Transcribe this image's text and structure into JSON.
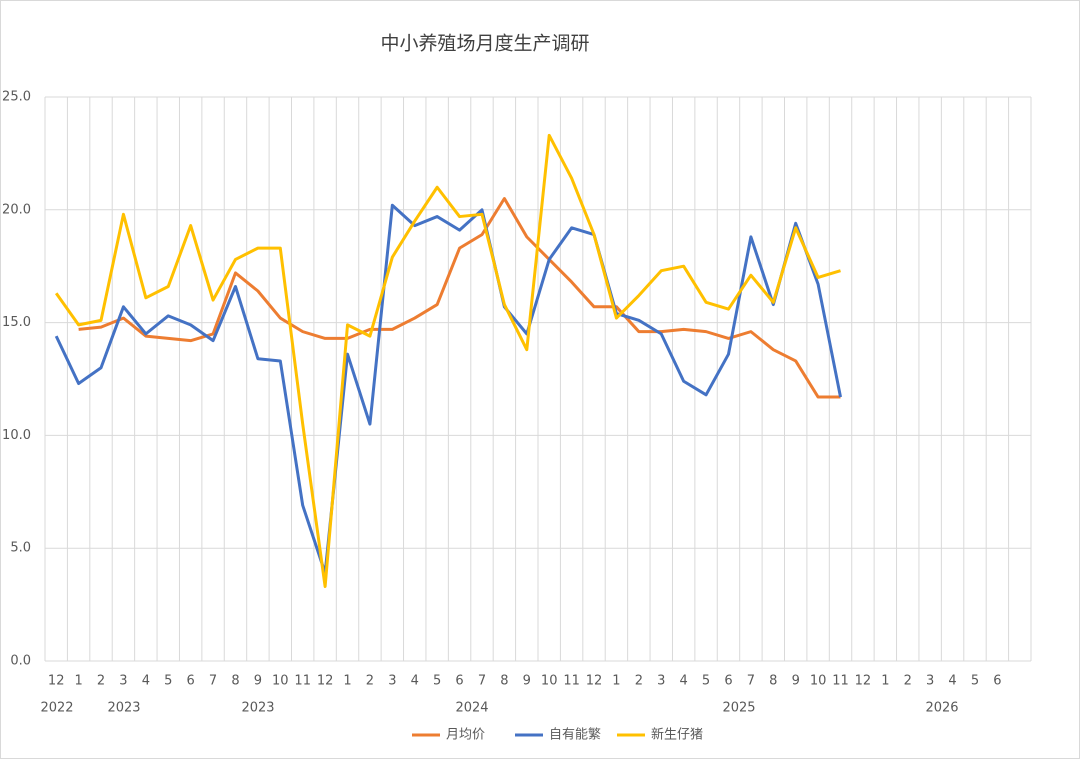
{
  "chart_data": {
    "type": "line",
    "title": "中小养殖场月度生产调研",
    "categories": [
      "12",
      "1",
      "2",
      "3",
      "4",
      "5",
      "6",
      "7",
      "8",
      "9",
      "10",
      "11",
      "12",
      "1",
      "2",
      "3",
      "4",
      "5",
      "6",
      "7",
      "8",
      "9",
      "10",
      "11",
      "12",
      "1",
      "2",
      "3",
      "4",
      "5",
      "6",
      "7",
      "8",
      "9",
      "10",
      "11",
      "12",
      "1",
      "2",
      "3",
      "4",
      "5",
      "6",
      null
    ],
    "year_labels": [
      "2022",
      "2023",
      "2023",
      "2024",
      "2025",
      "2026"
    ],
    "series": [
      {
        "name": "月均价",
        "color": "#ed7d31",
        "values": [
          null,
          14.7,
          14.8,
          15.2,
          14.4,
          14.3,
          14.2,
          14.5,
          17.2,
          16.4,
          15.2,
          14.6,
          14.3,
          14.3,
          14.7,
          14.7,
          15.2,
          15.8,
          18.3,
          18.9,
          20.5,
          18.8,
          17.8,
          16.8,
          15.7,
          15.7,
          14.6,
          14.6,
          14.7,
          14.6,
          14.3,
          14.6,
          13.8,
          13.3,
          11.7,
          11.7,
          null,
          null,
          null,
          null,
          null,
          null,
          null,
          null
        ]
      },
      {
        "name": "自有能繁",
        "color": "#4472c4",
        "values": [
          14.4,
          12.3,
          13.0,
          15.7,
          14.5,
          15.3,
          14.9,
          14.2,
          16.6,
          13.4,
          13.3,
          6.9,
          3.9,
          13.6,
          10.5,
          20.2,
          19.3,
          19.7,
          19.1,
          20.0,
          15.7,
          14.5,
          17.8,
          19.2,
          18.9,
          15.4,
          15.1,
          14.5,
          12.4,
          11.8,
          13.6,
          18.8,
          15.8,
          19.4,
          16.7,
          11.7,
          null,
          null,
          null,
          null,
          null,
          null,
          null,
          null
        ]
      },
      {
        "name": "新生仔猪",
        "color": "#ffc000",
        "values": [
          16.3,
          14.9,
          15.1,
          19.8,
          16.1,
          16.6,
          19.3,
          16.0,
          17.8,
          18.3,
          18.3,
          10.5,
          3.3,
          14.9,
          14.4,
          17.9,
          19.5,
          21.0,
          19.7,
          19.8,
          15.8,
          13.8,
          23.3,
          21.4,
          18.9,
          15.2,
          16.2,
          17.3,
          17.5,
          15.9,
          15.6,
          17.1,
          15.9,
          19.2,
          17.0,
          17.3,
          null,
          null,
          null,
          null,
          null,
          null,
          null,
          null
        ]
      }
    ],
    "ylim": [
      0,
      25
    ],
    "yticks": [
      {
        "value": 0,
        "label": "0.0"
      },
      {
        "value": 5,
        "label": "5.0"
      },
      {
        "value": 10,
        "label": "10.0"
      },
      {
        "value": 15,
        "label": "15.0"
      },
      {
        "value": 20,
        "label": "20.0"
      },
      {
        "value": 25,
        "label": "25.0"
      }
    ],
    "grid": true,
    "legend": "bottom"
  }
}
